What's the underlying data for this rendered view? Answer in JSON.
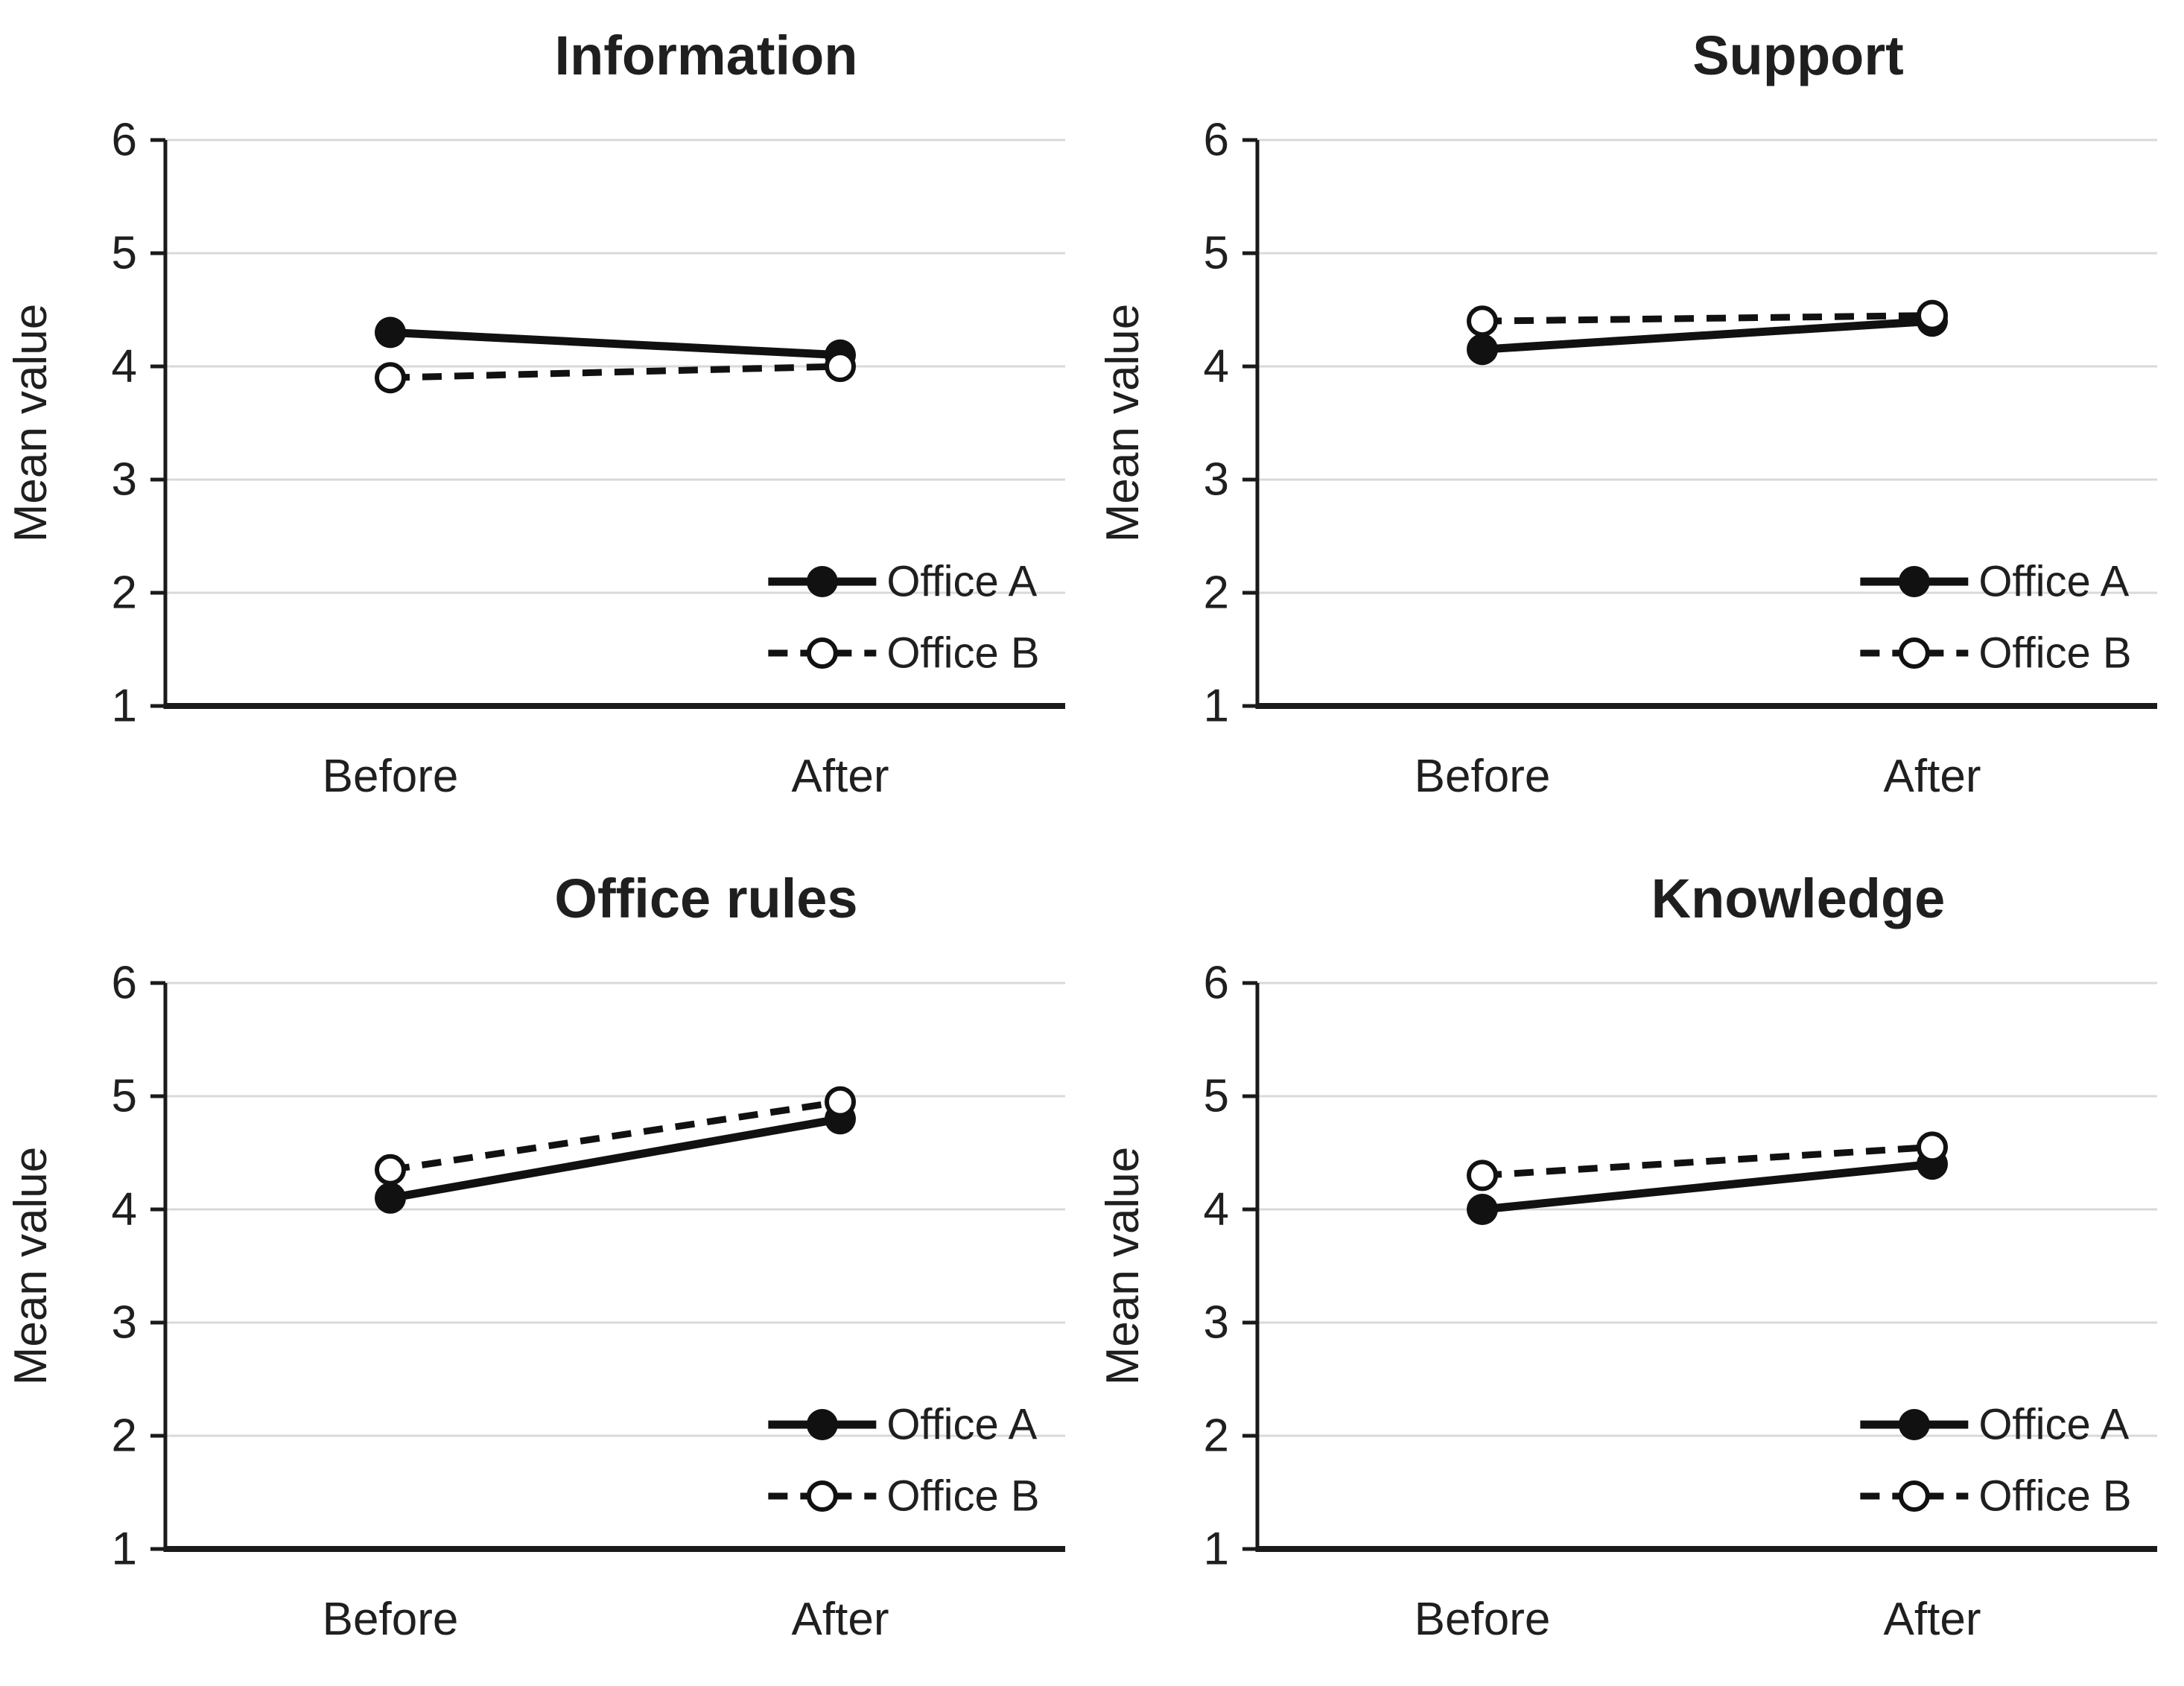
{
  "page": {
    "background": "#ffffff"
  },
  "style": {
    "series_color": "#111111",
    "grid_color": "#d9d9d9",
    "axis_color": "#1a1a1a",
    "text_color": "#1f1f1f",
    "marker_open_fill": "#ffffff"
  },
  "chart_data": [
    {
      "type": "line",
      "title": "Information",
      "ylabel": "Mean value",
      "categories": [
        "Before",
        "After"
      ],
      "ylim": [
        1,
        6
      ],
      "yticks": [
        1,
        2,
        3,
        4,
        5,
        6
      ],
      "grid": true,
      "legend_position": "inside-bottom-right",
      "series": [
        {
          "name": "Office A",
          "values": [
            4.3,
            4.1
          ],
          "line": "solid",
          "marker": "filled"
        },
        {
          "name": "Office B",
          "values": [
            3.9,
            4.0
          ],
          "line": "dashed",
          "marker": "open"
        }
      ]
    },
    {
      "type": "line",
      "title": "Support",
      "ylabel": "Mean value",
      "categories": [
        "Before",
        "After"
      ],
      "ylim": [
        1,
        6
      ],
      "yticks": [
        1,
        2,
        3,
        4,
        5,
        6
      ],
      "grid": true,
      "legend_position": "inside-bottom-right",
      "series": [
        {
          "name": "Office A",
          "values": [
            4.15,
            4.4
          ],
          "line": "solid",
          "marker": "filled"
        },
        {
          "name": "Office B",
          "values": [
            4.4,
            4.45
          ],
          "line": "dashed",
          "marker": "open"
        }
      ]
    },
    {
      "type": "line",
      "title": "Office rules",
      "ylabel": "Mean value",
      "categories": [
        "Before",
        "After"
      ],
      "ylim": [
        1,
        6
      ],
      "yticks": [
        1,
        2,
        3,
        4,
        5,
        6
      ],
      "grid": true,
      "legend_position": "inside-bottom-right",
      "series": [
        {
          "name": "Office A",
          "values": [
            4.1,
            4.8
          ],
          "line": "solid",
          "marker": "filled"
        },
        {
          "name": "Office B",
          "values": [
            4.35,
            4.95
          ],
          "line": "dashed",
          "marker": "open"
        }
      ]
    },
    {
      "type": "line",
      "title": "Knowledge",
      "ylabel": "Mean value",
      "categories": [
        "Before",
        "After"
      ],
      "ylim": [
        1,
        6
      ],
      "yticks": [
        1,
        2,
        3,
        4,
        5,
        6
      ],
      "grid": true,
      "legend_position": "inside-bottom-right",
      "series": [
        {
          "name": "Office A",
          "values": [
            4.0,
            4.4
          ],
          "line": "solid",
          "marker": "filled"
        },
        {
          "name": "Office B",
          "values": [
            4.3,
            4.55
          ],
          "line": "dashed",
          "marker": "open"
        }
      ]
    }
  ]
}
